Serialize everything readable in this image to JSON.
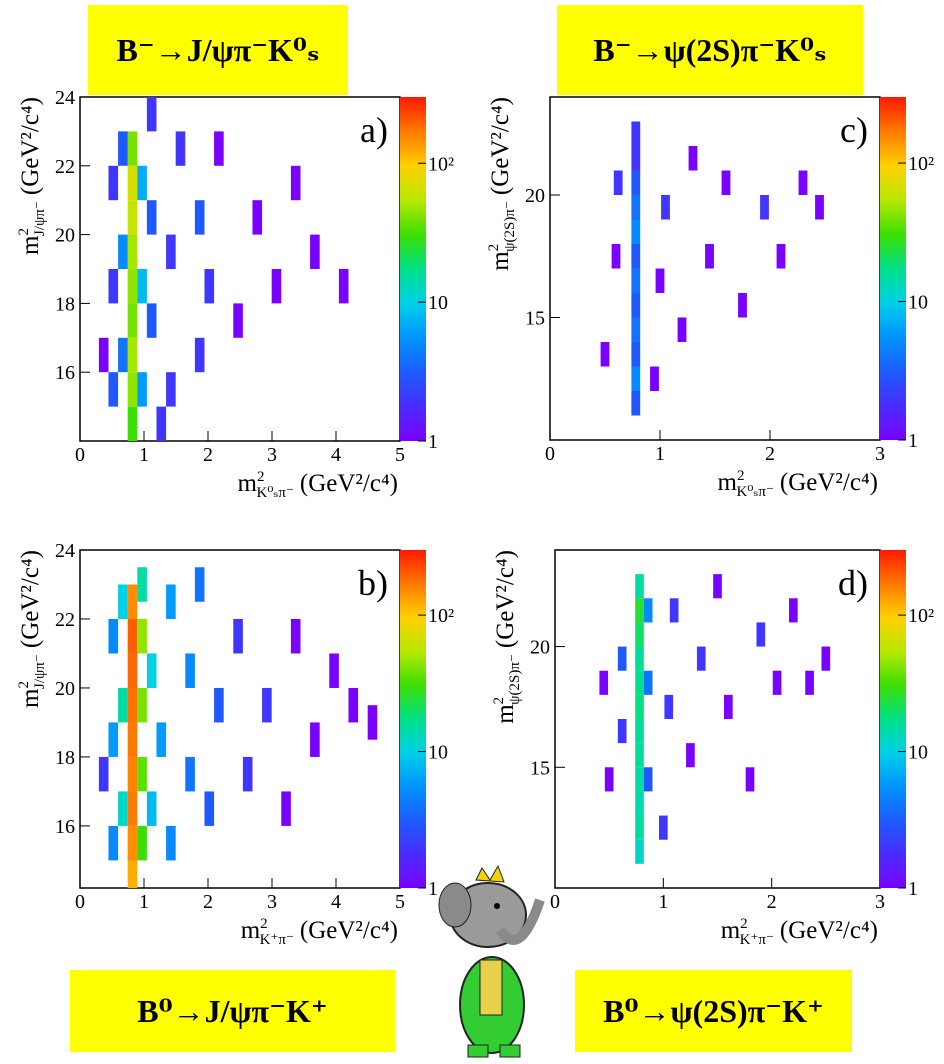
{
  "chart_data": [
    {
      "type": "heatmap",
      "title": "B⁻→J/ψπ⁻K⁰ₛ",
      "label": "a)",
      "xlabel": {
        "symbol": "m",
        "power": "2",
        "sub": "K⁰ₛπ⁻",
        "unit": "(GeV²/c⁴)"
      },
      "ylabel": {
        "symbol": "m",
        "power": "2",
        "sub": "J/ψπ⁻",
        "unit": "(GeV²/c⁴)"
      },
      "xlim": [
        0,
        5
      ],
      "ylim": [
        14,
        24
      ],
      "xticks": [
        0,
        1,
        2,
        3,
        4,
        5
      ],
      "yticks": [
        16,
        18,
        20,
        22,
        24
      ],
      "zlim": [
        1,
        300
      ],
      "zticks": [
        1,
        10,
        {
          "value": 100,
          "label": "10²"
        }
      ],
      "log_z": true,
      "cells": [
        [
          0.82,
          14.5,
          30
        ],
        [
          0.82,
          15.5,
          45
        ],
        [
          0.82,
          16.5,
          50
        ],
        [
          0.82,
          17.5,
          40
        ],
        [
          0.82,
          18.5,
          45
        ],
        [
          0.82,
          19.5,
          50
        ],
        [
          0.82,
          20.5,
          60
        ],
        [
          0.82,
          21.5,
          70
        ],
        [
          0.82,
          22.5,
          40
        ],
        [
          0.52,
          15.5,
          3
        ],
        [
          0.52,
          18.5,
          2
        ],
        [
          0.52,
          21.5,
          2
        ],
        [
          0.67,
          16.5,
          4
        ],
        [
          0.67,
          19.5,
          5
        ],
        [
          0.67,
          22.5,
          3
        ],
        [
          0.97,
          15.5,
          6
        ],
        [
          0.97,
          18.5,
          8
        ],
        [
          0.97,
          21.5,
          7
        ],
        [
          1.12,
          17.5,
          3
        ],
        [
          1.12,
          20.5,
          3
        ],
        [
          1.12,
          23.5,
          2
        ],
        [
          1.27,
          14.5,
          2
        ],
        [
          1.42,
          15.5,
          2
        ],
        [
          1.42,
          19.5,
          2
        ],
        [
          1.57,
          22.5,
          2
        ],
        [
          1.87,
          16.5,
          2
        ],
        [
          1.87,
          20.5,
          3
        ],
        [
          2.02,
          18.5,
          2
        ],
        [
          2.17,
          22.5,
          1
        ],
        [
          2.47,
          17.5,
          1
        ],
        [
          2.77,
          20.5,
          1
        ],
        [
          3.07,
          18.5,
          1
        ],
        [
          3.37,
          21.5,
          1
        ],
        [
          3.67,
          19.5,
          1
        ],
        [
          4.12,
          18.5,
          1
        ],
        [
          0.37,
          16.5,
          1
        ]
      ]
    },
    {
      "type": "heatmap",
      "title": "B⁻→ψ(2S)π⁻K⁰ₛ",
      "label": "c)",
      "xlabel": {
        "symbol": "m",
        "power": "2",
        "sub": "K⁰ₛπ⁻",
        "unit": "(GeV²/c⁴)"
      },
      "ylabel": {
        "symbol": "m",
        "power": "2",
        "sub": "ψ(2S)π⁻",
        "unit": "(GeV²/c⁴)"
      },
      "xlim": [
        0,
        3
      ],
      "ylim": [
        10,
        24
      ],
      "xticks": [
        0,
        1,
        2,
        3
      ],
      "yticks": [
        15,
        20
      ],
      "zlim": [
        1,
        300
      ],
      "zticks": [
        1,
        10,
        {
          "value": 100,
          "label": "10²"
        }
      ],
      "log_z": true,
      "cells": [
        [
          0.78,
          11.5,
          3
        ],
        [
          0.78,
          12.5,
          5
        ],
        [
          0.78,
          13.5,
          3
        ],
        [
          0.78,
          14.5,
          4
        ],
        [
          0.78,
          15.5,
          3
        ],
        [
          0.78,
          16.5,
          4
        ],
        [
          0.78,
          17.5,
          3
        ],
        [
          0.78,
          18.5,
          5
        ],
        [
          0.78,
          19.5,
          4
        ],
        [
          0.78,
          20.5,
          3
        ],
        [
          0.78,
          21.5,
          2
        ],
        [
          0.78,
          22.5,
          2
        ],
        [
          0.5,
          13.5,
          1
        ],
        [
          0.6,
          17.5,
          1
        ],
        [
          0.62,
          20.5,
          2
        ],
        [
          0.95,
          12.5,
          1
        ],
        [
          1.0,
          16.5,
          1
        ],
        [
          1.05,
          19.5,
          2
        ],
        [
          1.2,
          14.5,
          1
        ],
        [
          1.3,
          21.5,
          1
        ],
        [
          1.45,
          17.5,
          1
        ],
        [
          1.6,
          20.5,
          1
        ],
        [
          1.75,
          15.5,
          1
        ],
        [
          1.95,
          19.5,
          2
        ],
        [
          2.1,
          17.5,
          1
        ],
        [
          2.3,
          20.5,
          1
        ],
        [
          2.45,
          19.5,
          1
        ]
      ]
    },
    {
      "type": "heatmap",
      "title": "B⁰→J/ψπ⁻K⁺",
      "label": "b)",
      "xlabel": {
        "symbol": "m",
        "power": "2",
        "sub": "K⁺π⁻",
        "unit": "(GeV²/c⁴)"
      },
      "ylabel": {
        "symbol": "m",
        "power": "2",
        "sub": "J/ψπ⁻",
        "unit": "(GeV²/c⁴)"
      },
      "xlim": [
        0,
        5
      ],
      "ylim": [
        14.2,
        24
      ],
      "xticks": [
        0,
        1,
        2,
        3,
        4,
        5
      ],
      "yticks": [
        16,
        18,
        20,
        22,
        24
      ],
      "zlim": [
        1,
        300
      ],
      "zticks": [
        1,
        10,
        {
          "value": 100,
          "label": "10²"
        }
      ],
      "log_z": true,
      "cells": [
        [
          0.82,
          14.7,
          120
        ],
        [
          0.82,
          15.5,
          150
        ],
        [
          0.82,
          16.5,
          170
        ],
        [
          0.82,
          17.5,
          160
        ],
        [
          0.82,
          18.5,
          170
        ],
        [
          0.82,
          19.5,
          180
        ],
        [
          0.82,
          20.5,
          190
        ],
        [
          0.82,
          21.5,
          200
        ],
        [
          0.82,
          22.5,
          150
        ],
        [
          0.97,
          15.5,
          30
        ],
        [
          0.97,
          17.5,
          35
        ],
        [
          0.97,
          19.5,
          40
        ],
        [
          0.97,
          21.5,
          45
        ],
        [
          0.97,
          23.0,
          15
        ],
        [
          0.67,
          16.5,
          12
        ],
        [
          0.67,
          19.5,
          15
        ],
        [
          0.67,
          22.5,
          10
        ],
        [
          0.52,
          15.5,
          5
        ],
        [
          0.52,
          18.5,
          6
        ],
        [
          0.52,
          21.5,
          5
        ],
        [
          1.12,
          16.5,
          8
        ],
        [
          1.12,
          20.5,
          10
        ],
        [
          1.27,
          18.5,
          6
        ],
        [
          1.42,
          15.5,
          5
        ],
        [
          1.42,
          22.5,
          6
        ],
        [
          1.72,
          17.5,
          4
        ],
        [
          1.72,
          20.5,
          5
        ],
        [
          1.87,
          23.0,
          4
        ],
        [
          2.02,
          16.5,
          3
        ],
        [
          2.17,
          19.5,
          3
        ],
        [
          2.47,
          21.5,
          2
        ],
        [
          2.62,
          17.5,
          2
        ],
        [
          2.92,
          19.5,
          2
        ],
        [
          3.22,
          16.5,
          1
        ],
        [
          3.37,
          21.5,
          1
        ],
        [
          3.67,
          18.5,
          1
        ],
        [
          3.97,
          20.5,
          1
        ],
        [
          4.27,
          19.5,
          1
        ],
        [
          4.57,
          19.0,
          1
        ],
        [
          0.37,
          17.5,
          2
        ]
      ]
    },
    {
      "type": "heatmap",
      "title": "B⁰→ψ(2S)π⁻K⁺",
      "label": "d)",
      "xlabel": {
        "symbol": "m",
        "power": "2",
        "sub": "K⁺π⁻",
        "unit": "(GeV²/c⁴)"
      },
      "ylabel": {
        "symbol": "m",
        "power": "2",
        "sub": "ψ(2S)π⁻",
        "unit": "(GeV²/c⁴)"
      },
      "xlim": [
        0,
        3
      ],
      "ylim": [
        10,
        24
      ],
      "xticks": [
        0,
        1,
        2,
        3
      ],
      "yticks": [
        15,
        20
      ],
      "zlim": [
        1,
        300
      ],
      "zticks": [
        1,
        10,
        {
          "value": 100,
          "label": "10²"
        }
      ],
      "log_z": true,
      "cells": [
        [
          0.78,
          11.5,
          12
        ],
        [
          0.78,
          12.5,
          15
        ],
        [
          0.78,
          13.5,
          14
        ],
        [
          0.78,
          14.5,
          15
        ],
        [
          0.78,
          15.5,
          16
        ],
        [
          0.78,
          16.5,
          15
        ],
        [
          0.78,
          17.5,
          18
        ],
        [
          0.78,
          18.5,
          17
        ],
        [
          0.78,
          19.5,
          16
        ],
        [
          0.78,
          20.5,
          20
        ],
        [
          0.78,
          21.5,
          25
        ],
        [
          0.78,
          22.5,
          15
        ],
        [
          0.86,
          14.5,
          3
        ],
        [
          0.86,
          18.5,
          4
        ],
        [
          0.86,
          21.5,
          5
        ],
        [
          0.62,
          16.5,
          2
        ],
        [
          0.62,
          19.5,
          3
        ],
        [
          0.5,
          14.5,
          1
        ],
        [
          0.45,
          18.5,
          1
        ],
        [
          1.0,
          12.5,
          2
        ],
        [
          1.05,
          17.5,
          2
        ],
        [
          1.1,
          21.5,
          2
        ],
        [
          1.25,
          15.5,
          1
        ],
        [
          1.35,
          19.5,
          2
        ],
        [
          1.5,
          22.5,
          1
        ],
        [
          1.6,
          17.5,
          1
        ],
        [
          1.8,
          14.5,
          1
        ],
        [
          1.9,
          20.5,
          2
        ],
        [
          2.05,
          18.5,
          1
        ],
        [
          2.2,
          21.5,
          1
        ],
        [
          2.35,
          18.5,
          1
        ],
        [
          2.5,
          19.5,
          1
        ]
      ]
    }
  ]
}
